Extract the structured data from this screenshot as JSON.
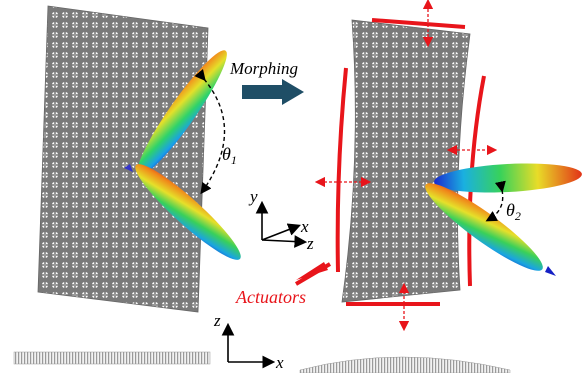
{
  "labels": {
    "morphing": "Morphing",
    "theta1_main": "θ",
    "theta1_sub": "1",
    "theta2_main": "θ",
    "theta2_sub": "2",
    "actuators": "Actuators",
    "axis_y": "y",
    "axis_x": "x",
    "axis_z": "z",
    "axis2_z": "z",
    "axis2_x": "x"
  },
  "colors": {
    "actuator": "#e8151b",
    "morph_arrow": "#1f4e66",
    "lattice": "#6e6e6e",
    "text": "#000000"
  }
}
